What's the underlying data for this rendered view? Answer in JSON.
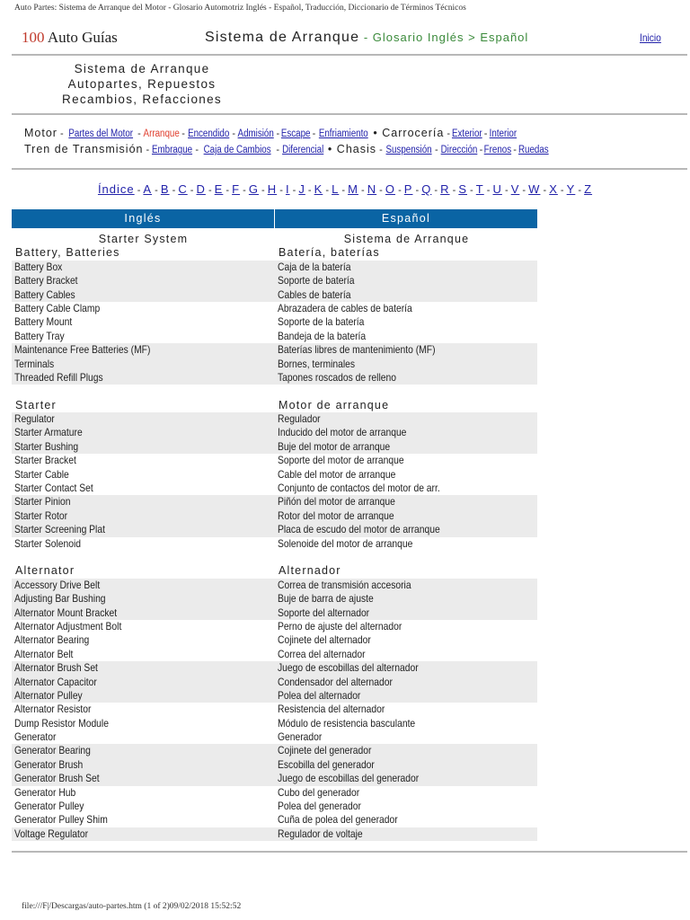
{
  "window_title": "Auto Partes: Sistema de Arranque del Motor - Glosario Automotriz Inglés - Español, Traducción, Diccionario de Términos Técnicos",
  "header": {
    "brand_number": "100",
    "brand_text": "Auto Guías",
    "title": "Sistema de Arranque",
    "title_sep": " - ",
    "subtitle": "Glosario Inglés > Español",
    "home_link": "Inicio"
  },
  "subtitle_lines": [
    "Sistema de Arranque",
    "Autopartes, Repuestos",
    "Recambios, Refacciones"
  ],
  "nav": {
    "motor_label": "Motor",
    "motor_links": [
      "Partes del Motor",
      "Arranque",
      "Encendido",
      "Admisión",
      "Escape",
      "Enfriamiento"
    ],
    "carroceria_label": "Carrocería",
    "carroceria_links": [
      "Exterior",
      "Interior"
    ],
    "tren_label": "Tren de Transmisión",
    "tren_links": [
      "Embrague",
      "Caja de Cambios",
      "Diferencial"
    ],
    "chasis_label": "Chasis",
    "chasis_links": [
      "Suspensión",
      "Dirección",
      "Frenos",
      "Ruedas"
    ],
    "current": "Arranque",
    "bullet": "•"
  },
  "alphabet": {
    "index_label": "Índice",
    "letters": [
      "A",
      "B",
      "C",
      "D",
      "E",
      "F",
      "G",
      "H",
      "I",
      "J",
      "K",
      "L",
      "M",
      "N",
      "O",
      "P",
      "Q",
      "R",
      "S",
      "T",
      "U",
      "V",
      "W",
      "X",
      "Y",
      "Z"
    ]
  },
  "table": {
    "headers": [
      "Inglés",
      "Español"
    ],
    "title_en": "Starter System",
    "title_es": "Sistema de Arranque",
    "header_color": "#0a64a4",
    "sections": [
      {
        "en": "Battery, Batteries",
        "es": "Batería, baterías",
        "rows": [
          [
            "Battery Box",
            "Caja de la batería"
          ],
          [
            "Battery Bracket",
            "Soporte de batería"
          ],
          [
            "Battery Cables",
            "Cables de batería"
          ],
          [
            "Battery Cable Clamp",
            "Abrazadera de cables de batería"
          ],
          [
            "Battery Mount",
            "Soporte de la batería"
          ],
          [
            "Battery Tray",
            "Bandeja de la batería"
          ],
          [
            "Maintenance Free Batteries (MF)",
            "Baterías libres de mantenimiento (MF)"
          ],
          [
            "Terminals",
            "Bornes, terminales"
          ],
          [
            "Threaded Refill Plugs",
            "Tapones roscados de relleno"
          ]
        ]
      },
      {
        "en": "Starter",
        "es": "Motor de arranque",
        "rows": [
          [
            "Regulator",
            "Regulador"
          ],
          [
            "Starter Armature",
            "Inducido del motor de arranque"
          ],
          [
            "Starter Bushing",
            "Buje del motor de arranque"
          ],
          [
            "Starter Bracket",
            "Soporte del motor de arranque"
          ],
          [
            "Starter Cable",
            "Cable del motor de arranque"
          ],
          [
            "Starter Contact Set",
            "Conjunto de contactos del motor de arr."
          ],
          [
            "Starter Pinion",
            "Piñón del motor de arranque"
          ],
          [
            "Starter Rotor",
            "Rotor del motor de arranque"
          ],
          [
            "Starter Screening Plat",
            "Placa de escudo del motor de arranque"
          ],
          [
            "Starter Solenoid",
            "Solenoide del motor de arranque"
          ]
        ]
      },
      {
        "en": "Alternator",
        "es": "Alternador",
        "rows": [
          [
            "Accessory Drive Belt",
            "Correa de transmisión accesoria"
          ],
          [
            "Adjusting Bar Bushing",
            "Buje de barra de ajuste"
          ],
          [
            "Alternator Mount Bracket",
            "Soporte del alternador"
          ],
          [
            "Alternator Adjustment Bolt",
            "Perno de ajuste del alternador"
          ],
          [
            "Alternator Bearing",
            "Cojinete del alternador"
          ],
          [
            "Alternator Belt",
            "Correa del alternador"
          ],
          [
            "Alternator Brush Set",
            "Juego de escobillas del alternador"
          ],
          [
            "Alternator Capacitor",
            "Condensador del alternador"
          ],
          [
            "Alternator Pulley",
            "Polea del alternador"
          ],
          [
            "Alternator Resistor",
            "Resistencia del alternador"
          ],
          [
            "Dump Resistor Module",
            "Módulo de resistencia basculante"
          ],
          [
            "Generator",
            "Generador"
          ],
          [
            "Generator Bearing",
            "Cojinete del generador"
          ],
          [
            "Generator Brush",
            "Escobilla del generador"
          ],
          [
            "Generator Brush Set",
            "Juego de escobillas del generador"
          ],
          [
            "Generator Hub",
            "Cubo del generador"
          ],
          [
            "Generator Pulley",
            "Polea del generador"
          ],
          [
            "Generator Pulley Shim",
            "Cuña de polea del generador"
          ],
          [
            "Voltage Regulator",
            "Regulador de voltaje"
          ]
        ]
      }
    ]
  },
  "footer": "file:///F|/Descargas/auto-partes.htm (1 of 2)09/02/2018 15:52:52"
}
